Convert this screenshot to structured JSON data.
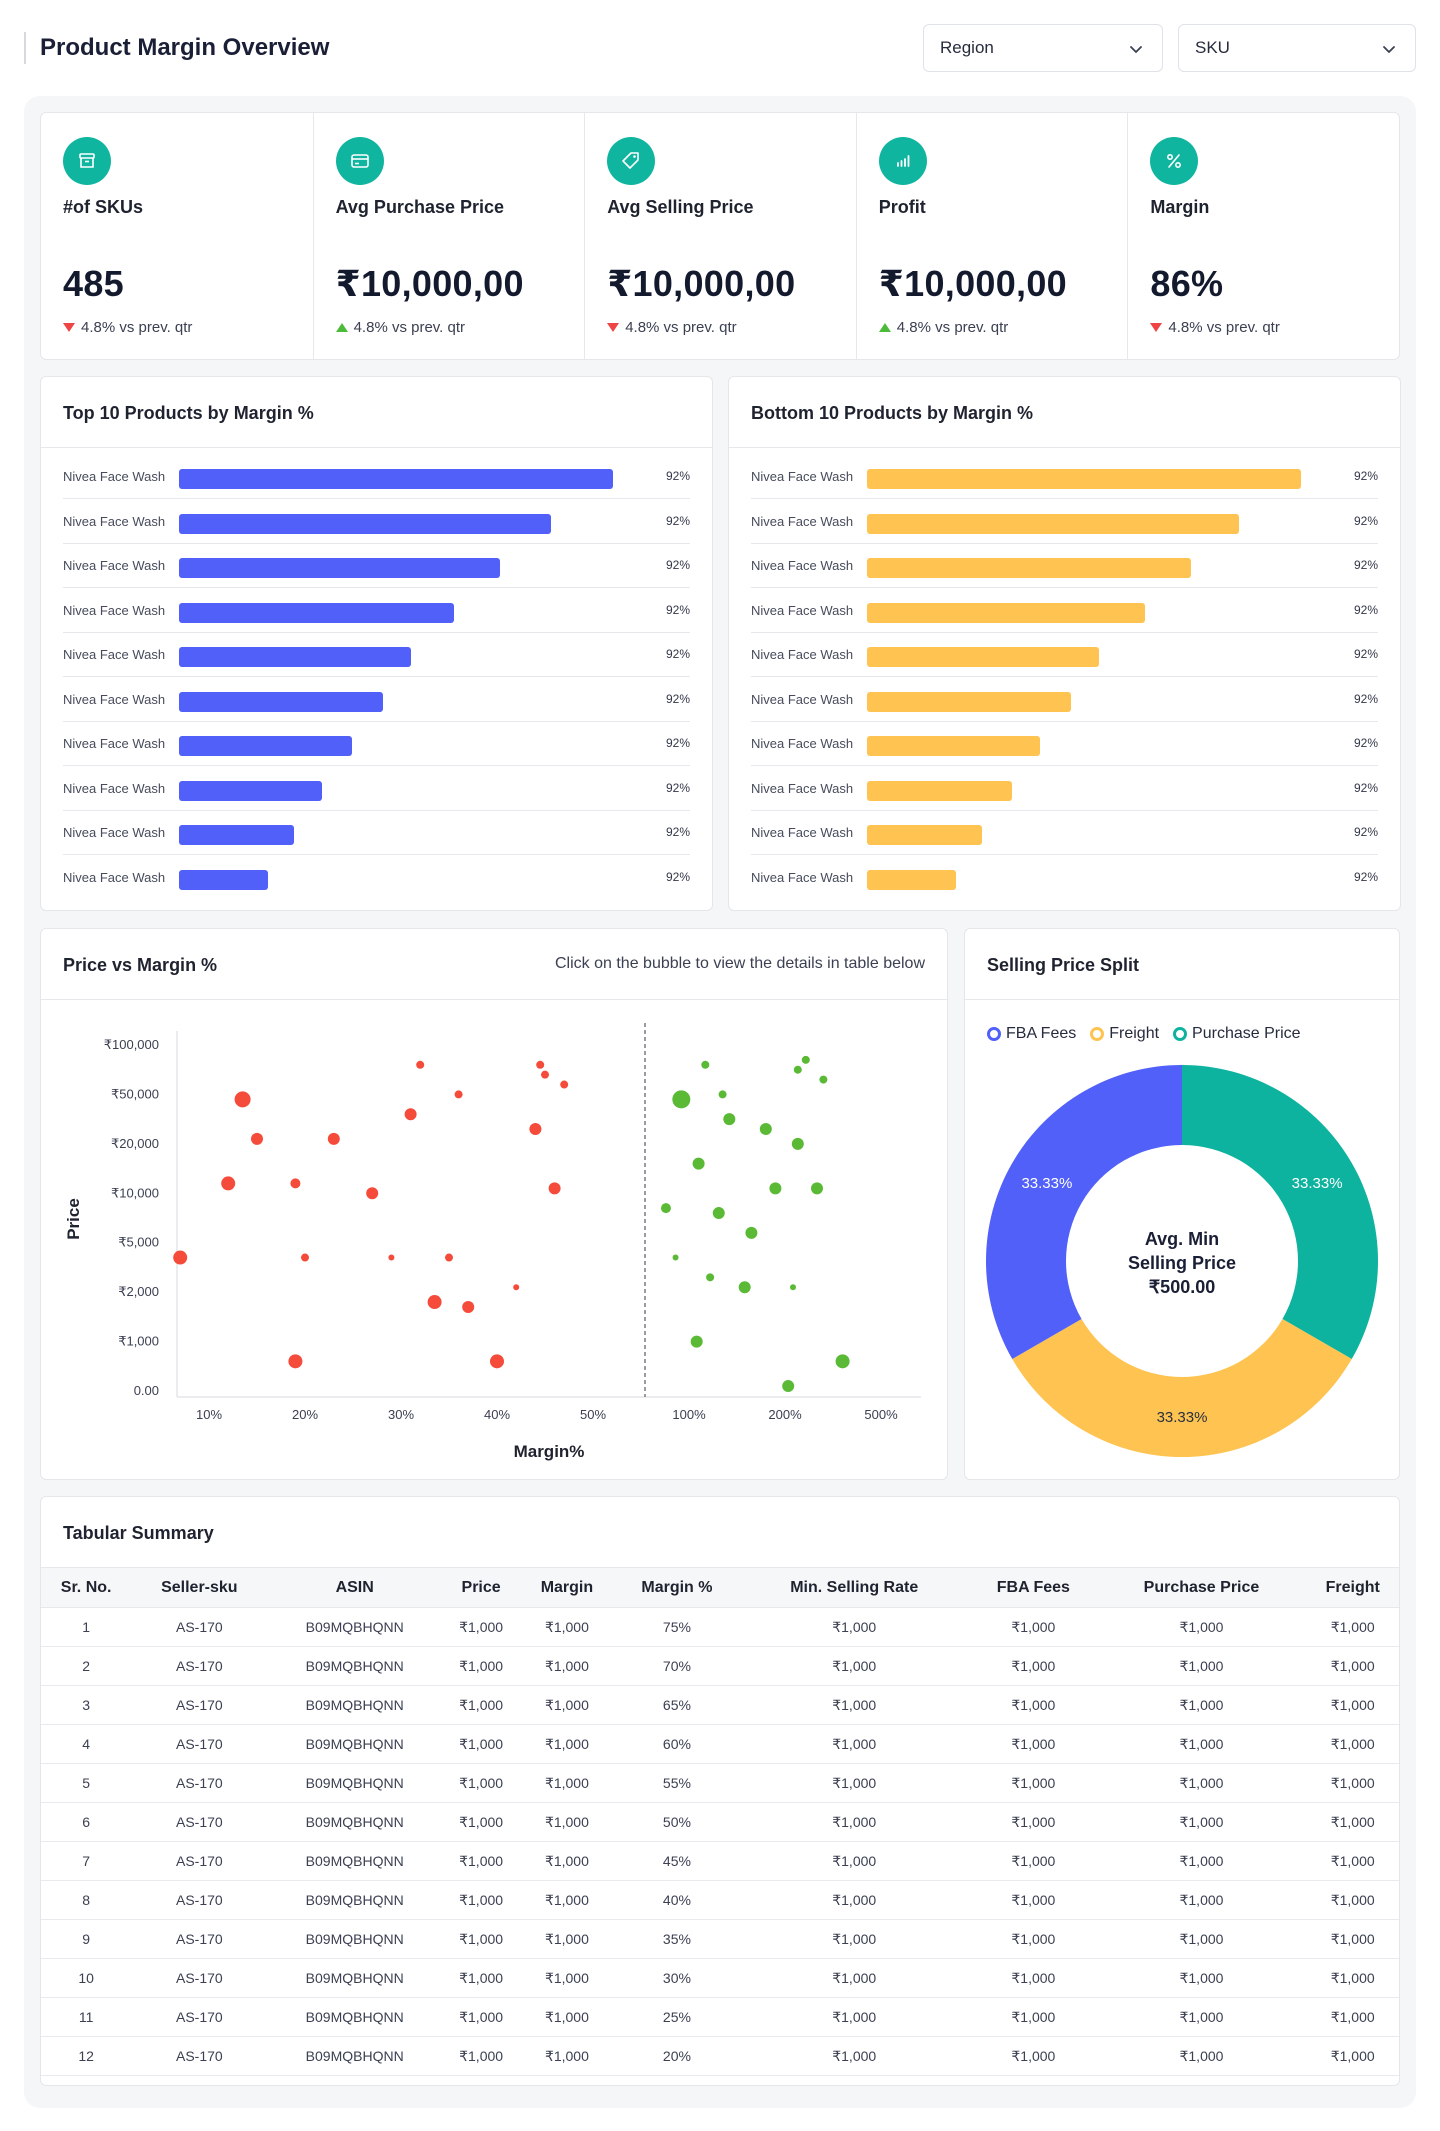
{
  "header": {
    "title": "Product Margin Overview"
  },
  "filters": [
    {
      "label": "Region"
    },
    {
      "label": "SKU"
    }
  ],
  "kpis": [
    {
      "icon": "archive-box-icon",
      "label": "#of SKUs",
      "value": "485",
      "delta": "4.8% vs prev. qtr",
      "trend": "down"
    },
    {
      "icon": "credit-card-icon",
      "label": "Avg Purchase Price",
      "value": "₹10,000,00",
      "delta": "4.8% vs prev. qtr",
      "trend": "up"
    },
    {
      "icon": "price-tag-icon",
      "label": "Avg Selling Price",
      "value": "₹10,000,00",
      "delta": "4.8% vs prev. qtr",
      "trend": "down"
    },
    {
      "icon": "bar-chart-icon",
      "label": "Profit",
      "value": "₹10,000,00",
      "delta": "4.8% vs prev. qtr",
      "trend": "up"
    },
    {
      "icon": "percent-icon",
      "label": "Margin",
      "value": "86%",
      "delta": "4.8% vs prev. qtr",
      "trend": "down"
    }
  ],
  "top_products": {
    "title": "Top 10 Products by Margin %",
    "color": "#5160f8",
    "items": [
      {
        "name": "Nivea Face Wash",
        "label": "92%",
        "length": 0.85
      },
      {
        "name": "Nivea Face Wash",
        "label": "92%",
        "length": 0.73
      },
      {
        "name": "Nivea Face Wash",
        "label": "92%",
        "length": 0.63
      },
      {
        "name": "Nivea Face Wash",
        "label": "92%",
        "length": 0.54
      },
      {
        "name": "Nivea Face Wash",
        "label": "92%",
        "length": 0.455
      },
      {
        "name": "Nivea Face Wash",
        "label": "92%",
        "length": 0.4
      },
      {
        "name": "Nivea Face Wash",
        "label": "92%",
        "length": 0.34
      },
      {
        "name": "Nivea Face Wash",
        "label": "92%",
        "length": 0.28
      },
      {
        "name": "Nivea Face Wash",
        "label": "92%",
        "length": 0.225
      },
      {
        "name": "Nivea Face Wash",
        "label": "92%",
        "length": 0.175
      }
    ]
  },
  "bottom_products": {
    "title": "Bottom 10 Products by Margin %",
    "color": "#fec350",
    "items": [
      {
        "name": "Nivea Face Wash",
        "label": "92%",
        "length": 0.85
      },
      {
        "name": "Nivea Face Wash",
        "label": "92%",
        "length": 0.73
      },
      {
        "name": "Nivea Face Wash",
        "label": "92%",
        "length": 0.635
      },
      {
        "name": "Nivea Face Wash",
        "label": "92%",
        "length": 0.545
      },
      {
        "name": "Nivea Face Wash",
        "label": "92%",
        "length": 0.455
      },
      {
        "name": "Nivea Face Wash",
        "label": "92%",
        "length": 0.4
      },
      {
        "name": "Nivea Face Wash",
        "label": "92%",
        "length": 0.34
      },
      {
        "name": "Nivea Face Wash",
        "label": "92%",
        "length": 0.285
      },
      {
        "name": "Nivea Face Wash",
        "label": "92%",
        "length": 0.225
      },
      {
        "name": "Nivea Face Wash",
        "label": "92%",
        "length": 0.175
      }
    ]
  },
  "scatter": {
    "title": "Price vs Margin %",
    "hint": "Click on the bubble to view the details in table below"
  },
  "donut": {
    "title": "Selling Price Split",
    "center_lines": [
      "Avg. Min",
      "Selling Price",
      "₹500.00"
    ]
  },
  "chart_data": [
    {
      "type": "scatter",
      "title": "Price vs Margin %",
      "xlabel": "Margin%",
      "ylabel": "Price",
      "x_ticks": [
        "10%",
        "20%",
        "30%",
        "40%",
        "50%",
        "100%",
        "200%",
        "500%"
      ],
      "y_ticks": [
        "0.00",
        "₹1,000",
        "₹2,000",
        "₹5,000",
        "₹10,000",
        "₹20,000",
        "₹50,000",
        "₹100,000"
      ],
      "grid": false,
      "series": [
        {
          "color": "#f44b3b",
          "points": [
            {
              "x": 7,
              "y": 2.7,
              "size": 7
            },
            {
              "x": 19,
              "y": 0.6,
              "size": 7
            },
            {
              "x": 12,
              "y": 4.2,
              "size": 7
            },
            {
              "x": 19,
              "y": 4.2,
              "size": 5
            },
            {
              "x": 15,
              "y": 5.1,
              "size": 6
            },
            {
              "x": 13.5,
              "y": 5.9,
              "size": 8
            },
            {
              "x": 20,
              "y": 2.7,
              "size": 4
            },
            {
              "x": 23,
              "y": 5.1,
              "size": 6
            },
            {
              "x": 27,
              "y": 4.0,
              "size": 6
            },
            {
              "x": 29,
              "y": 2.7,
              "size": 3
            },
            {
              "x": 31,
              "y": 5.6,
              "size": 6
            },
            {
              "x": 33.5,
              "y": 1.8,
              "size": 7
            },
            {
              "x": 35,
              "y": 2.7,
              "size": 4
            },
            {
              "x": 36,
              "y": 6.0,
              "size": 4
            },
            {
              "x": 37,
              "y": 1.7,
              "size": 6
            },
            {
              "x": 40,
              "y": 0.6,
              "size": 7
            },
            {
              "x": 42,
              "y": 2.1,
              "size": 3
            },
            {
              "x": 44,
              "y": 5.3,
              "size": 6
            },
            {
              "x": 46,
              "y": 4.1,
              "size": 6
            },
            {
              "x": 44.5,
              "y": 6.6,
              "size": 4
            },
            {
              "x": 45,
              "y": 6.4,
              "size": 4
            },
            {
              "x": 47,
              "y": 6.2,
              "size": 4
            },
            {
              "x": 32,
              "y": 6.6,
              "size": 4
            }
          ]
        },
        {
          "color": "#5ab935",
          "points": [
            {
              "x": 88,
              "y": 3.7,
              "size": 5
            },
            {
              "x": 93,
              "y": 2.7,
              "size": 3
            },
            {
              "x": 96,
              "y": 5.9,
              "size": 9
            },
            {
              "x": 108,
              "y": 1.0,
              "size": 6
            },
            {
              "x": 110,
              "y": 4.6,
              "size": 6
            },
            {
              "x": 117,
              "y": 6.6,
              "size": 4
            },
            {
              "x": 122,
              "y": 2.3,
              "size": 4
            },
            {
              "x": 131,
              "y": 3.6,
              "size": 6
            },
            {
              "x": 135,
              "y": 6.0,
              "size": 4
            },
            {
              "x": 142,
              "y": 5.5,
              "size": 6
            },
            {
              "x": 158,
              "y": 2.1,
              "size": 6
            },
            {
              "x": 165,
              "y": 3.2,
              "size": 6
            },
            {
              "x": 180,
              "y": 5.3,
              "size": 6
            },
            {
              "x": 190,
              "y": 4.1,
              "size": 6
            },
            {
              "x": 210,
              "y": 0.1,
              "size": 6
            },
            {
              "x": 225,
              "y": 2.1,
              "size": 3
            },
            {
              "x": 240,
              "y": 6.5,
              "size": 4
            },
            {
              "x": 240,
              "y": 5.0,
              "size": 6
            },
            {
              "x": 265,
              "y": 6.7,
              "size": 4
            },
            {
              "x": 300,
              "y": 4.1,
              "size": 6
            },
            {
              "x": 320,
              "y": 6.3,
              "size": 4
            },
            {
              "x": 380,
              "y": 0.6,
              "size": 7
            }
          ]
        }
      ]
    },
    {
      "type": "pie",
      "title": "Selling Price Split",
      "legend_position": "top-left",
      "series": [
        {
          "name": "FBA Fees",
          "value": 33.33,
          "label": "33.33%",
          "color": "#5160f8"
        },
        {
          "name": "Freight",
          "value": 33.33,
          "label": "33.33%",
          "color": "#fec350"
        },
        {
          "name": "Purchase Price",
          "value": 33.33,
          "label": "33.33%",
          "color": "#0db39e"
        }
      ]
    }
  ],
  "table": {
    "title": "Tabular Summary",
    "columns": [
      "Sr. No.",
      "Seller-sku",
      "ASIN",
      "Price",
      "Margin",
      "Margin %",
      "Min. Selling Rate",
      "FBA Fees",
      "Purchase Price",
      "Freight"
    ],
    "rows": [
      [
        "1",
        "AS-170",
        "B09MQBHQNN",
        "₹1,000",
        "₹1,000",
        "75%",
        "₹1,000",
        "₹1,000",
        "₹1,000",
        "₹1,000"
      ],
      [
        "2",
        "AS-170",
        "B09MQBHQNN",
        "₹1,000",
        "₹1,000",
        "70%",
        "₹1,000",
        "₹1,000",
        "₹1,000",
        "₹1,000"
      ],
      [
        "3",
        "AS-170",
        "B09MQBHQNN",
        "₹1,000",
        "₹1,000",
        "65%",
        "₹1,000",
        "₹1,000",
        "₹1,000",
        "₹1,000"
      ],
      [
        "4",
        "AS-170",
        "B09MQBHQNN",
        "₹1,000",
        "₹1,000",
        "60%",
        "₹1,000",
        "₹1,000",
        "₹1,000",
        "₹1,000"
      ],
      [
        "5",
        "AS-170",
        "B09MQBHQNN",
        "₹1,000",
        "₹1,000",
        "55%",
        "₹1,000",
        "₹1,000",
        "₹1,000",
        "₹1,000"
      ],
      [
        "6",
        "AS-170",
        "B09MQBHQNN",
        "₹1,000",
        "₹1,000",
        "50%",
        "₹1,000",
        "₹1,000",
        "₹1,000",
        "₹1,000"
      ],
      [
        "7",
        "AS-170",
        "B09MQBHQNN",
        "₹1,000",
        "₹1,000",
        "45%",
        "₹1,000",
        "₹1,000",
        "₹1,000",
        "₹1,000"
      ],
      [
        "8",
        "AS-170",
        "B09MQBHQNN",
        "₹1,000",
        "₹1,000",
        "40%",
        "₹1,000",
        "₹1,000",
        "₹1,000",
        "₹1,000"
      ],
      [
        "9",
        "AS-170",
        "B09MQBHQNN",
        "₹1,000",
        "₹1,000",
        "35%",
        "₹1,000",
        "₹1,000",
        "₹1,000",
        "₹1,000"
      ],
      [
        "10",
        "AS-170",
        "B09MQBHQNN",
        "₹1,000",
        "₹1,000",
        "30%",
        "₹1,000",
        "₹1,000",
        "₹1,000",
        "₹1,000"
      ],
      [
        "11",
        "AS-170",
        "B09MQBHQNN",
        "₹1,000",
        "₹1,000",
        "25%",
        "₹1,000",
        "₹1,000",
        "₹1,000",
        "₹1,000"
      ],
      [
        "12",
        "AS-170",
        "B09MQBHQNN",
        "₹1,000",
        "₹1,000",
        "20%",
        "₹1,000",
        "₹1,000",
        "₹1,000",
        "₹1,000"
      ]
    ]
  }
}
